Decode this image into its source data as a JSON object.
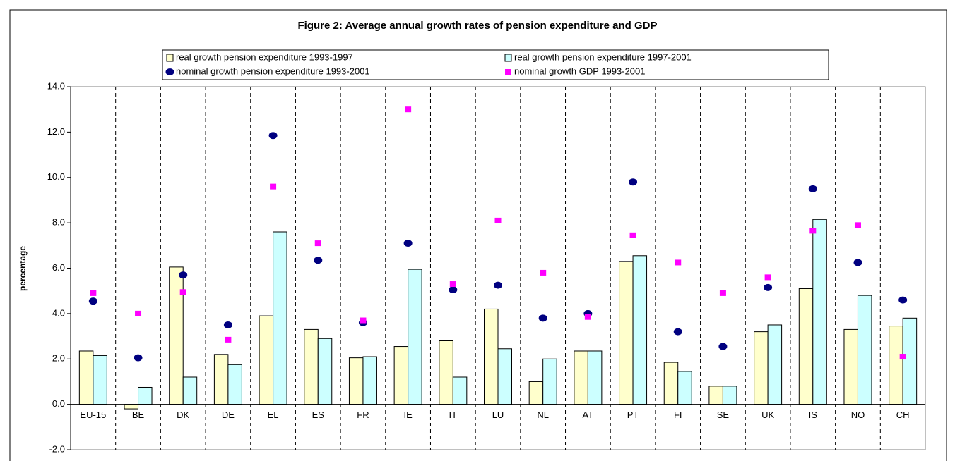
{
  "chart_data": {
    "type": "bar",
    "title": "Figure 2: Average annual growth rates of pension expenditure and GDP",
    "y_label": "percentage",
    "categories": [
      "EU-15",
      "BE",
      "DK",
      "DE",
      "EL",
      "ES",
      "FR",
      "IE",
      "IT",
      "LU",
      "NL",
      "AT",
      "PT",
      "FI",
      "SE",
      "UK",
      "IS",
      "NO",
      "CH"
    ],
    "series": [
      {
        "name": "real growth pension expenditure 1993-1997",
        "kind": "bar",
        "color": "#ffffcc",
        "values": [
          2.35,
          -0.2,
          6.05,
          2.2,
          3.9,
          3.3,
          2.05,
          2.55,
          2.8,
          4.2,
          1.0,
          2.35,
          6.3,
          1.85,
          0.8,
          3.2,
          5.1,
          3.3,
          3.45
        ]
      },
      {
        "name": "real growth pension expenditure 1997-2001",
        "kind": "bar",
        "color": "#ccffff",
        "values": [
          2.15,
          0.75,
          1.2,
          1.75,
          7.6,
          2.9,
          2.1,
          5.95,
          1.2,
          2.45,
          2.0,
          2.35,
          6.55,
          1.45,
          0.8,
          3.5,
          8.15,
          4.8,
          3.8
        ]
      },
      {
        "name": "nominal growth pension expenditure 1993-2001",
        "kind": "circle",
        "color": "#000080",
        "values": [
          4.55,
          2.05,
          5.7,
          3.5,
          11.85,
          6.35,
          3.6,
          7.1,
          5.05,
          5.25,
          3.8,
          4.0,
          9.8,
          3.2,
          2.55,
          5.15,
          9.5,
          6.25,
          4.6
        ]
      },
      {
        "name": "nominal growth GDP 1993-2001",
        "kind": "square",
        "color": "#ff00ff",
        "values": [
          4.9,
          4.0,
          4.95,
          2.85,
          9.6,
          7.1,
          3.7,
          13.0,
          5.3,
          8.1,
          5.8,
          3.85,
          7.45,
          6.25,
          4.9,
          5.6,
          7.65,
          7.9,
          2.1
        ]
      }
    ],
    "ylim": [
      -2,
      14
    ],
    "yticks": [
      {
        "value": -2,
        "label": "-2.0"
      },
      {
        "value": 0,
        "label": "0.0"
      },
      {
        "value": 2,
        "label": "2.0"
      },
      {
        "value": 4,
        "label": "4.0"
      },
      {
        "value": 6,
        "label": "6.0"
      },
      {
        "value": 8,
        "label": "8.0"
      },
      {
        "value": 10,
        "label": "10.0"
      },
      {
        "value": 12,
        "label": "12.0"
      },
      {
        "value": 14,
        "label": "14.0"
      }
    ],
    "legend": "top"
  }
}
